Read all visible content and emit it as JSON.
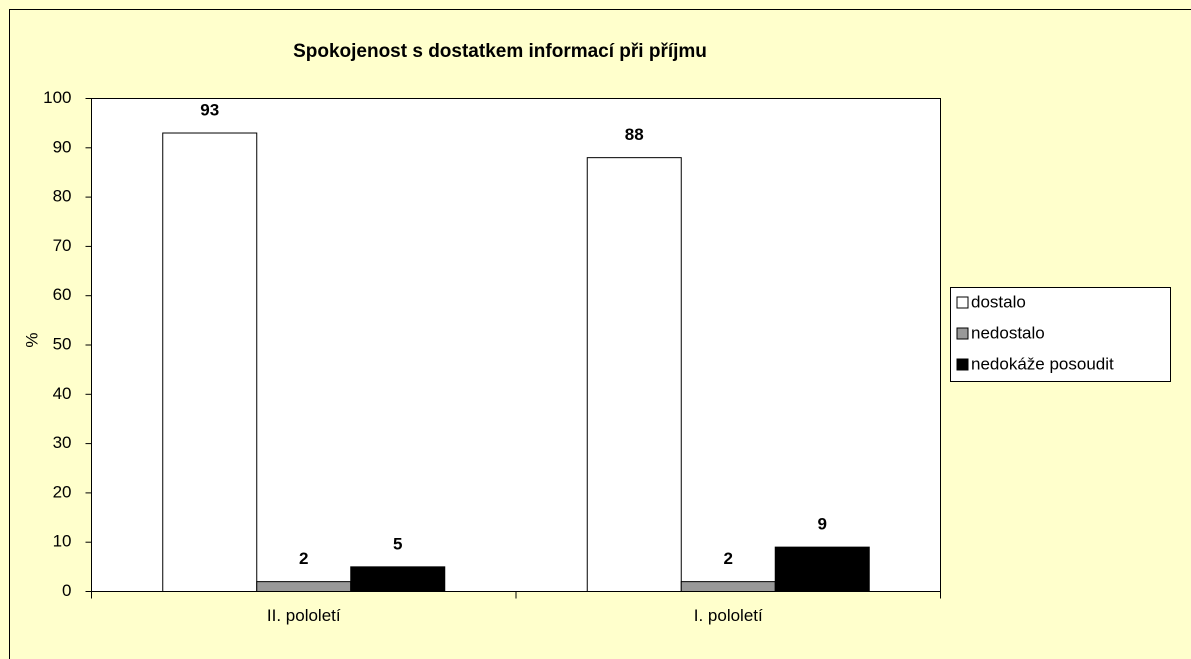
{
  "chart_data": {
    "type": "bar",
    "title": "Spokojenost s dostatkem informací při příjmu",
    "y_label": "%",
    "categories": [
      "II. pololetí",
      "I. pololetí"
    ],
    "series": [
      {
        "name": "dostalo",
        "color": "#ffffff",
        "values": [
          93,
          88
        ]
      },
      {
        "name": "nedostalo",
        "color": "#999999",
        "values": [
          2,
          2
        ]
      },
      {
        "name": "nedokáže posoudit",
        "color": "#000000",
        "values": [
          5,
          9
        ]
      }
    ],
    "ylim": [
      0,
      100
    ],
    "yticks": [
      0,
      10,
      20,
      30,
      40,
      50,
      60,
      70,
      80,
      90,
      100
    ],
    "legend": "right"
  }
}
